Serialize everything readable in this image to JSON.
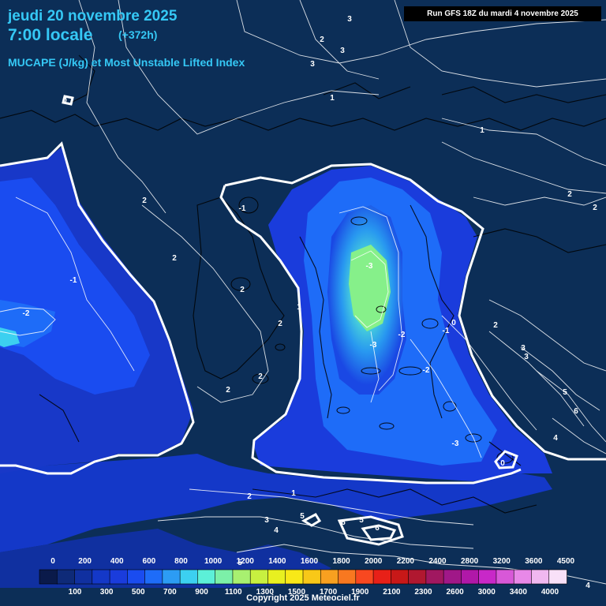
{
  "header": {
    "date": "jeudi 20 novembre 2025",
    "time": "7:00 locale",
    "lead": "(+372h)",
    "parameter": "MUCAPE (J/kg) et Most Unstable Lifted Index"
  },
  "run_label": "Run GFS 18Z du mardi 4 novembre 2025",
  "copyright": "Copyright 2025 Meteociel.fr",
  "legend": {
    "colors": [
      "#0a1a4a",
      "#0e2a78",
      "#1030a0",
      "#1438c8",
      "#1a3cdc",
      "#1a4cf0",
      "#1e6cf8",
      "#2c9cf4",
      "#3cd0f0",
      "#5cf0d8",
      "#7cf0a8",
      "#a8f070",
      "#c8f040",
      "#e8f020",
      "#f8e818",
      "#f8c818",
      "#f8a020",
      "#f87820",
      "#f84820",
      "#e82018",
      "#c81818",
      "#b01830",
      "#a01860",
      "#a01888",
      "#b018a8",
      "#c828c8",
      "#d858d8",
      "#e888e8",
      "#f0b8f0",
      "#f8e0f8"
    ],
    "top_labels": [
      "0",
      "200",
      "400",
      "600",
      "800",
      "1000",
      "1200",
      "1400",
      "1600",
      "1800",
      "2000",
      "2200",
      "2400",
      "2800",
      "3200",
      "3600",
      "4500"
    ],
    "bottom_labels": [
      "100",
      "300",
      "500",
      "700",
      "900",
      "1100",
      "1300",
      "1500",
      "1700",
      "1900",
      "2100",
      "2300",
      "2600",
      "3000",
      "3400",
      "4000"
    ]
  },
  "contour_labels": [
    "3",
    "2",
    "3",
    "3",
    "1",
    "1",
    "2",
    "2",
    "0",
    "-1",
    "-2",
    "2",
    "2",
    "-1",
    "2",
    "1",
    "2",
    "2",
    "2",
    "-3",
    "-3",
    "-2",
    "-1",
    "0",
    "-2",
    "-3",
    "0",
    "2",
    "3",
    "3",
    "5",
    "6",
    "4",
    "1",
    "2",
    "3",
    "4",
    "5",
    "6",
    "5",
    "6",
    "5",
    "4"
  ]
}
